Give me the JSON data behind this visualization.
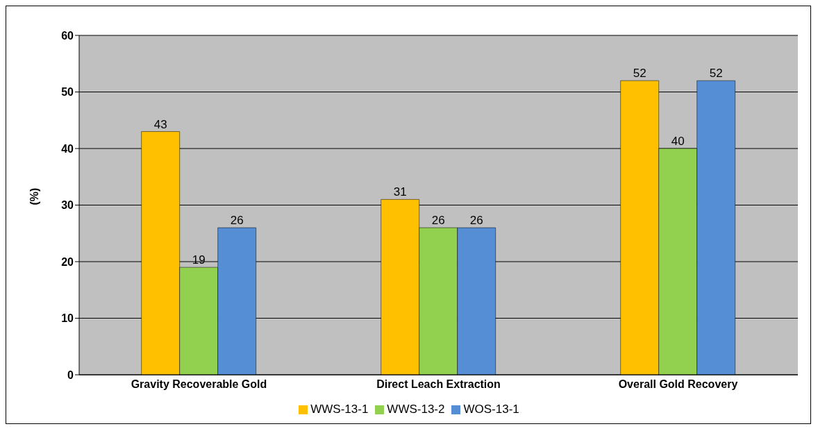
{
  "chart_data": {
    "type": "bar",
    "ylabel": "(%)",
    "categories": [
      "Gravity Recoverable Gold",
      "Direct Leach Extraction",
      "Overall Gold  Recovery"
    ],
    "series": [
      {
        "name": "WWS-13-1",
        "color": "#ffc000",
        "values": [
          43,
          31,
          52
        ]
      },
      {
        "name": "WWS-13-2",
        "color": "#92d050",
        "values": [
          19,
          26,
          40
        ]
      },
      {
        "name": "WOS-13-1",
        "color": "#558ed5",
        "values": [
          26,
          26,
          52
        ]
      }
    ],
    "ylim": [
      0,
      60
    ],
    "yticks": [
      0,
      10,
      20,
      30,
      40,
      50,
      60
    ],
    "grid": "y",
    "legend": "bottom",
    "data_labels": true
  }
}
